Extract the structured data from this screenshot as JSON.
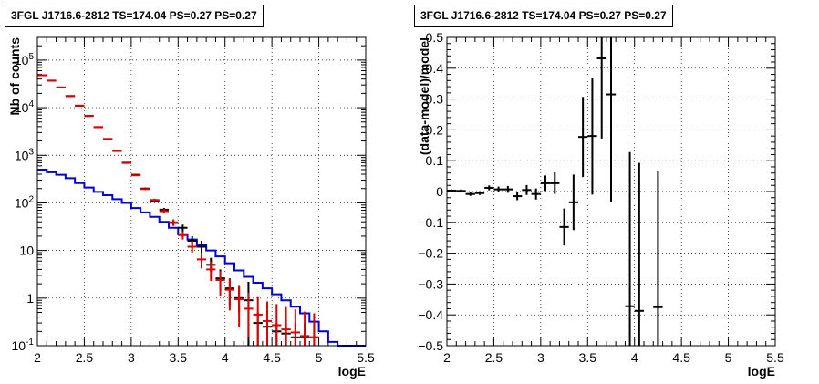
{
  "chart_data": [
    {
      "type": "line",
      "title": "3FGL J1716.6-2812 TS=174.04 PS=0.27 PS=0.27",
      "xlabel": "logE",
      "ylabel": "Nb of counts",
      "xlim": [
        2,
        5.5
      ],
      "ylim": [
        0.1,
        300000
      ],
      "yscale": "log",
      "grid": true,
      "x_ticks": [
        "2",
        "2.5",
        "3",
        "3.5",
        "4",
        "4.5",
        "5",
        "5.5"
      ],
      "y_ticks": [
        "10^-1",
        "1",
        "10",
        "10^2",
        "10^3",
        "10^4",
        "10^5"
      ],
      "colors": {
        "data": "#000000",
        "total_model": "#e00000",
        "source_model": "#0000dd"
      },
      "series": [
        {
          "kind": "points",
          "color": "#000000",
          "x": [
            2.05,
            2.15,
            2.25,
            2.35,
            2.45,
            2.55,
            2.65,
            2.75,
            2.85,
            2.95,
            3.05,
            3.15,
            3.25,
            3.35,
            3.45,
            3.55,
            3.65,
            3.75,
            3.85,
            3.95,
            4.05,
            4.15,
            4.25,
            4.35,
            4.45,
            4.55,
            4.65,
            4.75,
            4.85,
            4.95
          ],
          "y": [
            48000,
            37000,
            26500,
            17500,
            11000,
            6700,
            3900,
            2200,
            1250,
            700,
            390,
            200,
            110,
            72,
            38,
            30,
            16,
            12,
            5,
            2.6,
            1.6,
            1,
            0.9,
            0.3,
            0.25,
            0.2,
            0.18,
            0.15,
            0.15,
            0.15
          ],
          "y_lo": [
            47600,
            36600,
            26200,
            17200,
            10800,
            6600,
            3800,
            2150,
            1220,
            680,
            375,
            190,
            102,
            66,
            33,
            25,
            13,
            9,
            3.5,
            1.5,
            0.7,
            0.5,
            0.1,
            0.1,
            0.1,
            0.1,
            0.1,
            0.1,
            0.1,
            0.1
          ],
          "y_hi": [
            48400,
            37400,
            26800,
            17800,
            11200,
            6800,
            4000,
            2250,
            1290,
            725,
            405,
            210,
            118,
            78,
            43,
            35,
            20,
            16,
            7,
            4,
            2.6,
            1.8,
            2.2,
            0.5,
            0.4,
            0.3,
            0.3,
            0.3,
            0.3,
            0.3
          ]
        },
        {
          "kind": "points",
          "color": "#e00000",
          "x": [
            2.05,
            2.15,
            2.25,
            2.35,
            2.45,
            2.55,
            2.65,
            2.75,
            2.85,
            2.95,
            3.05,
            3.15,
            3.25,
            3.35,
            3.45,
            3.55,
            3.65,
            3.75,
            3.85,
            3.95,
            4.05,
            4.15,
            4.25,
            4.35,
            4.45,
            4.55,
            4.65,
            4.75,
            4.85,
            4.95
          ],
          "y": [
            48000,
            37000,
            26700,
            17600,
            11000,
            6700,
            3900,
            2200,
            1230,
            690,
            380,
            195,
            115,
            67,
            39,
            21,
            12,
            6.5,
            4,
            2.4,
            1.5,
            0.95,
            0.6,
            0.45,
            0.33,
            0.27,
            0.22,
            0.19,
            0.16,
            0.15
          ],
          "y_lo": [
            47600,
            36600,
            26400,
            17300,
            10800,
            6600,
            3800,
            2150,
            1200,
            670,
            370,
            186,
            108,
            60,
            33,
            17,
            9,
            4.2,
            2.3,
            1.1,
            0.55,
            0.25,
            0.15,
            0.1,
            0.1,
            0.1,
            0.1,
            0.1,
            0.1,
            0.1
          ],
          "y_hi": [
            48400,
            37400,
            27000,
            17900,
            11200,
            6800,
            4000,
            2250,
            1260,
            710,
            390,
            204,
            122,
            74,
            45,
            25,
            16,
            9,
            5.8,
            3.7,
            2.6,
            1.8,
            1.3,
            1.05,
            0.85,
            0.75,
            0.65,
            0.58,
            0.52,
            0.48
          ]
        },
        {
          "kind": "step",
          "color": "#0000dd",
          "x": [
            2.05,
            2.15,
            2.25,
            2.35,
            2.45,
            2.55,
            2.65,
            2.75,
            2.85,
            2.95,
            3.05,
            3.15,
            3.25,
            3.35,
            3.45,
            3.55,
            3.65,
            3.75,
            3.85,
            3.95,
            4.05,
            4.15,
            4.25,
            4.35,
            4.45,
            4.55,
            4.65,
            4.75,
            4.85,
            4.95,
            5.05,
            5.15,
            5.25,
            5.35,
            5.45
          ],
          "y": [
            500,
            440,
            390,
            330,
            260,
            210,
            170,
            145,
            120,
            100,
            78,
            63,
            51,
            40,
            30,
            22,
            17,
            13,
            10,
            7.5,
            5.4,
            3.8,
            2.8,
            2.1,
            1.6,
            1.2,
            0.9,
            0.66,
            0.48,
            0.32,
            0.2,
            0.12,
            0.1,
            0.1,
            0.1
          ]
        }
      ]
    },
    {
      "type": "scatter",
      "title": "3FGL J1716.6-2812 TS=174.04 PS=0.27 PS=0.27",
      "xlabel": "logE",
      "ylabel": "(data-model)/model",
      "xlim": [
        2,
        5.5
      ],
      "ylim": [
        -0.5,
        0.5
      ],
      "grid": true,
      "x_ticks": [
        "2",
        "2.5",
        "3",
        "3.5",
        "4",
        "4.5",
        "5",
        "5.5"
      ],
      "y_ticks": [
        "−0.5",
        "−0.4",
        "−0.3",
        "−0.2",
        "−0.1",
        "0",
        "0.1",
        "0.2",
        "0.3",
        "0.4",
        "0.5"
      ],
      "series": [
        {
          "color": "#000000",
          "x": [
            2.05,
            2.15,
            2.25,
            2.35,
            2.45,
            2.55,
            2.65,
            2.75,
            2.85,
            2.95,
            3.05,
            3.15,
            3.25,
            3.35,
            3.45,
            3.55,
            3.65,
            3.75,
            3.95,
            4.05,
            4.25
          ],
          "y": [
            0.003,
            0.002,
            -0.008,
            -0.005,
            0.012,
            0.007,
            0.007,
            -0.015,
            0.005,
            -0.008,
            0.027,
            0.027,
            -0.115,
            -0.035,
            0.177,
            0.18,
            0.432,
            0.315,
            -0.372,
            -0.387,
            -0.375
          ],
          "y_err": [
            0.004,
            0.005,
            0.006,
            0.006,
            0.008,
            0.009,
            0.011,
            0.013,
            0.016,
            0.018,
            0.025,
            0.035,
            0.06,
            0.09,
            0.13,
            0.19,
            0.26,
            0.35,
            0.5,
            0.48,
            0.44
          ]
        }
      ]
    }
  ]
}
